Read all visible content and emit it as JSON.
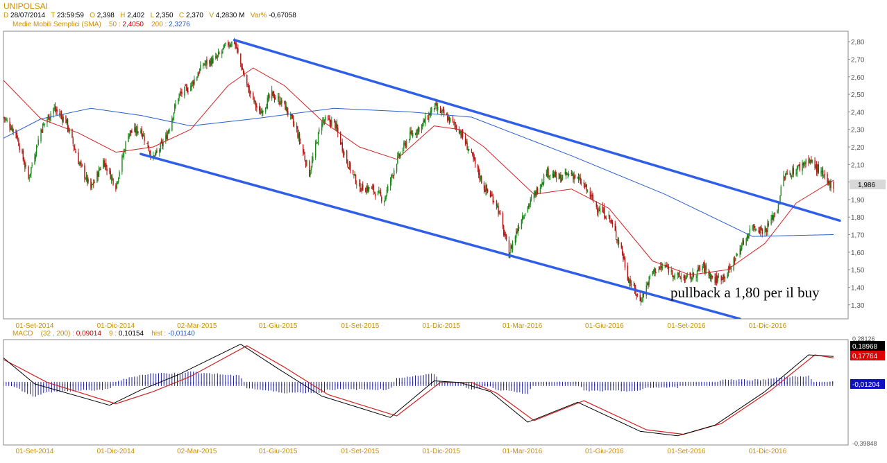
{
  "header": {
    "symbol": "UNIPOLSAI",
    "ohlc_line": [
      {
        "k": "D",
        "v": "28/07/2014"
      },
      {
        "k": "T",
        "v": "23:59:59"
      },
      {
        "k": "O",
        "v": "2,398"
      },
      {
        "k": "H",
        "v": "2,402"
      },
      {
        "k": "L",
        "v": "2,350"
      },
      {
        "k": "C",
        "v": "2,370"
      },
      {
        "k": "V",
        "v": "4,2830 M"
      },
      {
        "k": "Var%",
        "v": "-0,67058"
      }
    ],
    "sma_label": "Medie Mobili Semplici (SMA)",
    "sma": [
      {
        "period": "50",
        "value": "2,4050",
        "color": "#c00000"
      },
      {
        "period": "200",
        "value": "2,3276",
        "color": "#1f55c8"
      }
    ]
  },
  "chart_data": [
    {
      "type": "candlestick",
      "title": "UNIPOLSAI",
      "x_tick_labels": [
        "01-Set-2014",
        "01-Dic-2014",
        "02-Mar-2015",
        "01-Giu-2015",
        "01-Set-2015",
        "01-Dic-2015",
        "01-Mar-2016",
        "01-Giu-2016",
        "01-Set-2016",
        "01-Dic-2016"
      ],
      "ylim": [
        1.22,
        2.86
      ],
      "y_tick_labels": [
        "2,80",
        "2,70",
        "2,60",
        "2,50",
        "2,40",
        "2,30",
        "2,20",
        "2,10",
        "2,00",
        "1,90",
        "1,80",
        "1,70",
        "1,60",
        "1,50",
        "1,40",
        "1,30"
      ],
      "last_price_label": "1,986",
      "price_path": [
        {
          "date": "2014-07-28",
          "close": 2.37
        },
        {
          "date": "2014-08-11",
          "close": 2.28
        },
        {
          "date": "2014-08-25",
          "close": 2.02
        },
        {
          "date": "2014-09-08",
          "close": 2.3
        },
        {
          "date": "2014-09-22",
          "close": 2.42
        },
        {
          "date": "2014-10-06",
          "close": 2.35
        },
        {
          "date": "2014-10-20",
          "close": 2.12
        },
        {
          "date": "2014-11-03",
          "close": 1.96
        },
        {
          "date": "2014-11-17",
          "close": 2.12
        },
        {
          "date": "2014-12-01",
          "close": 1.98
        },
        {
          "date": "2014-12-15",
          "close": 2.28
        },
        {
          "date": "2014-12-29",
          "close": 2.3
        },
        {
          "date": "2015-01-12",
          "close": 2.13
        },
        {
          "date": "2015-01-26",
          "close": 2.25
        },
        {
          "date": "2015-02-09",
          "close": 2.49
        },
        {
          "date": "2015-02-23",
          "close": 2.55
        },
        {
          "date": "2015-03-09",
          "close": 2.67
        },
        {
          "date": "2015-03-23",
          "close": 2.7
        },
        {
          "date": "2015-04-06",
          "close": 2.79
        },
        {
          "date": "2015-04-13",
          "close": 2.8
        },
        {
          "date": "2015-04-27",
          "close": 2.55
        },
        {
          "date": "2015-05-11",
          "close": 2.39
        },
        {
          "date": "2015-05-25",
          "close": 2.5
        },
        {
          "date": "2015-06-08",
          "close": 2.44
        },
        {
          "date": "2015-06-22",
          "close": 2.29
        },
        {
          "date": "2015-07-06",
          "close": 2.05
        },
        {
          "date": "2015-07-20",
          "close": 2.35
        },
        {
          "date": "2015-08-03",
          "close": 2.34
        },
        {
          "date": "2015-08-17",
          "close": 2.12
        },
        {
          "date": "2015-08-31",
          "close": 1.97
        },
        {
          "date": "2015-09-14",
          "close": 1.96
        },
        {
          "date": "2015-09-28",
          "close": 1.9
        },
        {
          "date": "2015-10-12",
          "close": 2.12
        },
        {
          "date": "2015-10-26",
          "close": 2.26
        },
        {
          "date": "2015-11-09",
          "close": 2.32
        },
        {
          "date": "2015-11-23",
          "close": 2.43
        },
        {
          "date": "2015-12-07",
          "close": 2.37
        },
        {
          "date": "2015-12-21",
          "close": 2.3
        },
        {
          "date": "2016-01-04",
          "close": 2.15
        },
        {
          "date": "2016-01-18",
          "close": 1.97
        },
        {
          "date": "2016-02-01",
          "close": 1.88
        },
        {
          "date": "2016-02-15",
          "close": 1.59
        },
        {
          "date": "2016-02-29",
          "close": 1.8
        },
        {
          "date": "2016-03-14",
          "close": 1.92
        },
        {
          "date": "2016-03-28",
          "close": 2.06
        },
        {
          "date": "2016-04-11",
          "close": 2.02
        },
        {
          "date": "2016-04-25",
          "close": 2.05
        },
        {
          "date": "2016-05-09",
          "close": 1.98
        },
        {
          "date": "2016-05-23",
          "close": 1.86
        },
        {
          "date": "2016-06-06",
          "close": 1.8
        },
        {
          "date": "2016-06-20",
          "close": 1.62
        },
        {
          "date": "2016-06-27",
          "close": 1.46
        },
        {
          "date": "2016-07-11",
          "close": 1.32
        },
        {
          "date": "2016-07-25",
          "close": 1.49
        },
        {
          "date": "2016-08-08",
          "close": 1.52
        },
        {
          "date": "2016-08-22",
          "close": 1.46
        },
        {
          "date": "2016-09-05",
          "close": 1.45
        },
        {
          "date": "2016-09-19",
          "close": 1.52
        },
        {
          "date": "2016-10-03",
          "close": 1.44
        },
        {
          "date": "2016-10-17",
          "close": 1.48
        },
        {
          "date": "2016-10-31",
          "close": 1.62
        },
        {
          "date": "2016-11-14",
          "close": 1.75
        },
        {
          "date": "2016-11-28",
          "close": 1.72
        },
        {
          "date": "2016-12-12",
          "close": 1.85
        },
        {
          "date": "2016-12-19",
          "close": 2.03
        },
        {
          "date": "2017-01-02",
          "close": 2.07
        },
        {
          "date": "2017-01-16",
          "close": 2.13
        },
        {
          "date": "2017-01-30",
          "close": 2.05
        },
        {
          "date": "2017-02-06",
          "close": 1.99
        },
        {
          "date": "2017-02-13",
          "close": 1.986
        }
      ],
      "sma50_path": [
        {
          "date": "2014-07-28",
          "value": 2.58
        },
        {
          "date": "2014-09-08",
          "value": 2.36
        },
        {
          "date": "2014-10-20",
          "value": 2.28
        },
        {
          "date": "2014-12-01",
          "value": 2.17
        },
        {
          "date": "2015-01-12",
          "value": 2.2
        },
        {
          "date": "2015-02-23",
          "value": 2.3
        },
        {
          "date": "2015-04-06",
          "value": 2.55
        },
        {
          "date": "2015-05-04",
          "value": 2.65
        },
        {
          "date": "2015-06-08",
          "value": 2.55
        },
        {
          "date": "2015-07-20",
          "value": 2.35
        },
        {
          "date": "2015-08-31",
          "value": 2.2
        },
        {
          "date": "2015-10-12",
          "value": 2.13
        },
        {
          "date": "2015-11-23",
          "value": 2.32
        },
        {
          "date": "2015-12-21",
          "value": 2.3
        },
        {
          "date": "2016-01-18",
          "value": 2.2
        },
        {
          "date": "2016-03-14",
          "value": 1.93
        },
        {
          "date": "2016-04-25",
          "value": 1.96
        },
        {
          "date": "2016-06-06",
          "value": 1.85
        },
        {
          "date": "2016-07-25",
          "value": 1.55
        },
        {
          "date": "2016-09-05",
          "value": 1.47
        },
        {
          "date": "2016-10-17",
          "value": 1.5
        },
        {
          "date": "2016-11-28",
          "value": 1.65
        },
        {
          "date": "2017-01-02",
          "value": 1.88
        },
        {
          "date": "2017-02-13",
          "value": 2.01
        }
      ],
      "sma200_path": [
        {
          "date": "2014-07-28",
          "value": 2.25
        },
        {
          "date": "2014-09-08",
          "value": 2.36
        },
        {
          "date": "2014-11-03",
          "value": 2.42
        },
        {
          "date": "2014-12-29",
          "value": 2.38
        },
        {
          "date": "2015-02-23",
          "value": 2.32
        },
        {
          "date": "2015-05-04",
          "value": 2.36
        },
        {
          "date": "2015-08-03",
          "value": 2.42
        },
        {
          "date": "2015-10-26",
          "value": 2.4
        },
        {
          "date": "2016-01-04",
          "value": 2.37
        },
        {
          "date": "2016-04-25",
          "value": 2.15
        },
        {
          "date": "2016-08-08",
          "value": 1.93
        },
        {
          "date": "2016-11-14",
          "value": 1.69
        },
        {
          "date": "2017-02-13",
          "value": 1.7
        }
      ],
      "trendlines": [
        {
          "name": "upper channel",
          "from": {
            "date": "2015-04-13",
            "value": 2.81
          },
          "to": {
            "date": "2017-02-20",
            "value": 1.78
          }
        },
        {
          "name": "lower channel",
          "from": {
            "date": "2014-12-29",
            "value": 2.16
          },
          "to": {
            "date": "2016-10-31",
            "value": 1.22
          }
        }
      ],
      "annotation": "pullback a 1,80 per il buy"
    },
    {
      "type": "line",
      "title": "MACD",
      "params": "(32 , 200)",
      "values": {
        "macd": "0,09014",
        "signal_period": "9",
        "signal": "0,10154",
        "hist_label": "hist",
        "hist": "-0,01140"
      },
      "right_labels": [
        "0,18968",
        "0,17764",
        "-0,01204",
        "-0,39848"
      ],
      "top_label": "0,28126",
      "ylim": [
        -0.4,
        0.29
      ],
      "x_tick_labels": [
        "01-Set-2014",
        "01-Dic-2014",
        "02-Mar-2015",
        "01-Giu-2015",
        "01-Set-2015",
        "01-Dic-2015",
        "01-Mar-2016",
        "01-Giu-2016",
        "01-Set-2016",
        "01-Dic-2016"
      ],
      "macd_path": [
        {
          "date": "2014-07-28",
          "value": 0.17
        },
        {
          "date": "2014-09-01",
          "value": 0.0
        },
        {
          "date": "2014-11-24",
          "value": -0.14
        },
        {
          "date": "2014-12-29",
          "value": -0.04
        },
        {
          "date": "2015-02-09",
          "value": 0.06
        },
        {
          "date": "2015-04-20",
          "value": 0.26
        },
        {
          "date": "2015-06-01",
          "value": 0.1
        },
        {
          "date": "2015-07-20",
          "value": -0.08
        },
        {
          "date": "2015-10-05",
          "value": -0.22
        },
        {
          "date": "2015-11-23",
          "value": 0.02
        },
        {
          "date": "2015-12-21",
          "value": 0.01
        },
        {
          "date": "2016-01-25",
          "value": -0.05
        },
        {
          "date": "2016-03-07",
          "value": -0.25
        },
        {
          "date": "2016-05-02",
          "value": -0.12
        },
        {
          "date": "2016-07-11",
          "value": -0.31
        },
        {
          "date": "2016-08-22",
          "value": -0.34
        },
        {
          "date": "2016-10-03",
          "value": -0.27
        },
        {
          "date": "2016-11-28",
          "value": -0.05
        },
        {
          "date": "2017-01-16",
          "value": 0.19
        },
        {
          "date": "2017-02-13",
          "value": 0.18
        }
      ],
      "signal_path": [
        {
          "date": "2014-07-28",
          "value": 0.16
        },
        {
          "date": "2014-09-15",
          "value": 0.01
        },
        {
          "date": "2014-12-01",
          "value": -0.13
        },
        {
          "date": "2015-01-12",
          "value": -0.05
        },
        {
          "date": "2015-02-23",
          "value": 0.05
        },
        {
          "date": "2015-04-27",
          "value": 0.25
        },
        {
          "date": "2015-06-08",
          "value": 0.11
        },
        {
          "date": "2015-07-27",
          "value": -0.07
        },
        {
          "date": "2015-10-12",
          "value": -0.21
        },
        {
          "date": "2015-11-30",
          "value": 0.01
        },
        {
          "date": "2016-01-04",
          "value": 0.01
        },
        {
          "date": "2016-02-01",
          "value": -0.06
        },
        {
          "date": "2016-03-14",
          "value": -0.24
        },
        {
          "date": "2016-05-09",
          "value": -0.11
        },
        {
          "date": "2016-07-18",
          "value": -0.3
        },
        {
          "date": "2016-08-29",
          "value": -0.33
        },
        {
          "date": "2016-10-10",
          "value": -0.26
        },
        {
          "date": "2016-12-05",
          "value": -0.04
        },
        {
          "date": "2017-01-23",
          "value": 0.19
        },
        {
          "date": "2017-02-13",
          "value": 0.17
        }
      ]
    }
  ],
  "colors": {
    "candle_up": "#1a8a1a",
    "candle_down": "#b81414",
    "sma50": "#d42020",
    "sma200": "#2a5fd0",
    "trendline": "#2f5ee8",
    "axis_text": "#c89000",
    "macd": "#000000",
    "signal": "#d42020",
    "hist": "#1a1aa0"
  }
}
